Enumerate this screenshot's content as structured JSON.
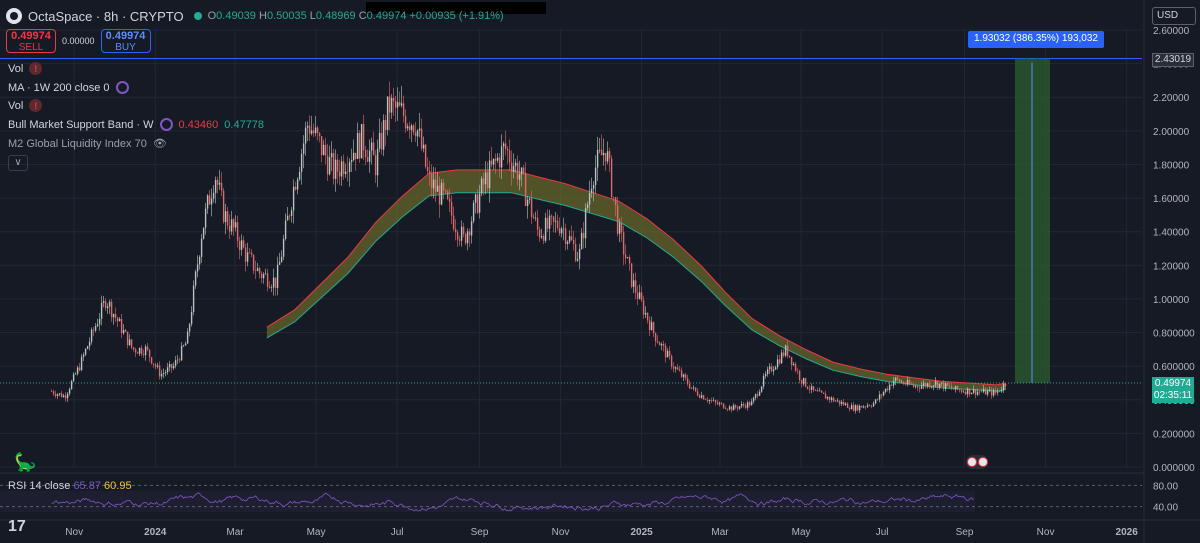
{
  "header": {
    "title": "OctaSpace · 8h · CRYPTO",
    "open_label": "O",
    "open": "0.49039",
    "high_label": "H",
    "high": "0.50035",
    "low_label": "L",
    "low": "0.48969",
    "close_label": "C",
    "close": "0.49974",
    "change": "+0.00935 (+1.91%)"
  },
  "trade": {
    "sell_price": "0.49974",
    "sell_label": "SELL",
    "spread": "0.00000",
    "buy_price": "0.49974",
    "buy_label": "BUY"
  },
  "currency": "USD",
  "legend": {
    "vol1": "Vol",
    "ma": "MA · 1W 200 close 0",
    "vol2": "Vol",
    "bmsb": "Bull Market Support Band · W",
    "bmsb_v1": "0.43460",
    "bmsb_v2": "0.47778",
    "m2": "M2 Global Liquidity Index 70"
  },
  "measure_label": "1.93032 (386.35%) 193,032",
  "price_tags": {
    "top": "2.43019",
    "current": "0.49974",
    "countdown": "02:35:11"
  },
  "rsi": {
    "label": "RSI 14 close",
    "value1": "65.87",
    "value2": "60.95"
  },
  "colors": {
    "up": "#22ab94",
    "down": "#f23645",
    "candle_up": "#b5c4bf",
    "candle_down": "#e06a6a",
    "band": "#6b6b2a",
    "rsi": "#7e57c2",
    "measure": "#2962ff"
  },
  "chart_data": {
    "type": "line",
    "y_ticks": [
      "2.60000",
      "2.40000",
      "2.20000",
      "2.00000",
      "1.80000",
      "1.60000",
      "1.40000",
      "1.20000",
      "1.00000",
      "0.800000",
      "0.600000",
      "0.400000",
      "0.200000",
      "0.000000"
    ],
    "ylim": [
      0,
      2.6
    ],
    "x_ticks": [
      "Nov",
      "2024",
      "Mar",
      "May",
      "Jul",
      "Sep",
      "Nov",
      "2025",
      "Mar",
      "May",
      "Jul",
      "Sep",
      "Nov",
      "2026"
    ],
    "rsi_ticks": [
      "80.00",
      "40.00"
    ],
    "series": [
      {
        "name": "OctaSpace",
        "x": [
          "2023-10-15",
          "2023-10-25",
          "2023-11-05",
          "2023-11-15",
          "2023-11-25",
          "2023-12-05",
          "2023-12-15",
          "2023-12-25",
          "2024-01-05",
          "2024-01-15",
          "2024-01-25",
          "2024-02-05",
          "2024-02-15",
          "2024-02-22",
          "2024-03-01",
          "2024-03-10",
          "2024-03-20",
          "2024-04-01",
          "2024-04-15",
          "2024-04-25",
          "2024-05-05",
          "2024-05-15",
          "2024-05-25",
          "2024-06-05",
          "2024-06-15",
          "2024-06-25",
          "2024-07-05",
          "2024-07-15",
          "2024-07-25",
          "2024-08-05",
          "2024-08-20",
          "2024-09-05",
          "2024-09-20",
          "2024-10-01",
          "2024-10-15",
          "2024-11-01",
          "2024-11-15",
          "2024-11-25",
          "2024-12-05",
          "2024-12-15",
          "2024-12-25",
          "2025-01-10",
          "2025-01-25",
          "2025-02-10",
          "2025-02-25",
          "2025-03-10",
          "2025-03-25",
          "2025-04-05",
          "2025-04-20",
          "2025-05-01",
          "2025-05-10",
          "2025-05-25",
          "2025-06-10",
          "2025-06-25",
          "2025-07-10",
          "2025-07-25",
          "2025-08-10",
          "2025-08-25",
          "2025-09-10",
          "2025-09-25",
          "2025-10-02"
        ],
        "values": [
          0.45,
          0.42,
          0.6,
          0.8,
          1.0,
          0.85,
          0.7,
          0.7,
          0.55,
          0.6,
          0.75,
          1.4,
          1.75,
          1.5,
          1.4,
          1.25,
          1.15,
          1.1,
          1.7,
          2.05,
          1.9,
          1.75,
          1.85,
          1.95,
          1.8,
          2.15,
          2.1,
          2.05,
          1.7,
          1.6,
          1.35,
          1.7,
          1.9,
          1.75,
          1.4,
          1.45,
          1.25,
          1.75,
          1.9,
          1.4,
          1.1,
          0.8,
          0.6,
          0.45,
          0.38,
          0.35,
          0.38,
          0.55,
          0.7,
          0.52,
          0.45,
          0.4,
          0.35,
          0.38,
          0.52,
          0.48,
          0.5,
          0.46,
          0.45,
          0.44,
          0.5
        ]
      },
      {
        "name": "Bull Market Support Band",
        "x": [
          "2024-03-25",
          "2024-04-15",
          "2024-05-05",
          "2024-05-25",
          "2024-06-15",
          "2024-07-05",
          "2024-07-25",
          "2024-08-15",
          "2024-09-05",
          "2024-09-25",
          "2024-10-15",
          "2024-11-05",
          "2024-11-25",
          "2024-12-15",
          "2025-01-05",
          "2025-01-25",
          "2025-02-15",
          "2025-03-05",
          "2025-03-25",
          "2025-04-15",
          "2025-05-05",
          "2025-05-25",
          "2025-06-15",
          "2025-07-05",
          "2025-07-25",
          "2025-08-15",
          "2025-09-05",
          "2025-09-25",
          "2025-10-02"
        ],
        "values": [
          0.8,
          0.9,
          1.05,
          1.2,
          1.4,
          1.55,
          1.68,
          1.7,
          1.7,
          1.7,
          1.66,
          1.62,
          1.57,
          1.52,
          1.42,
          1.3,
          1.15,
          1.0,
          0.85,
          0.75,
          0.67,
          0.6,
          0.56,
          0.53,
          0.51,
          0.49,
          0.48,
          0.47,
          0.48
        ]
      }
    ]
  }
}
